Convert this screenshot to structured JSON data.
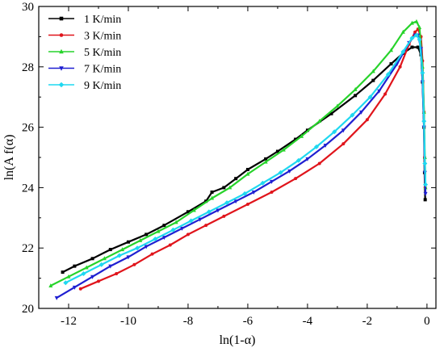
{
  "chart_data": {
    "type": "line",
    "xlabel": "ln(1-α)",
    "ylabel": "ln(A f(α)",
    "xlim": [
      -13,
      0.3
    ],
    "ylim": [
      20,
      30
    ],
    "xticks": [
      -12,
      -10,
      -8,
      -6,
      -4,
      -2,
      0
    ],
    "xtick_labels": [
      "-12",
      "-10",
      "-8",
      "-6",
      "-4",
      "-2",
      "0"
    ],
    "yticks": [
      20,
      22,
      24,
      26,
      28,
      30
    ],
    "ytick_labels": [
      "20",
      "22",
      "24",
      "26",
      "28",
      "30"
    ],
    "grid": false,
    "legend": "top-left",
    "series": [
      {
        "name": "1 K/min",
        "color": "#000000",
        "marker": "square",
        "points": [
          [
            -12.2,
            21.2
          ],
          [
            -11.8,
            21.4
          ],
          [
            -11.2,
            21.65
          ],
          [
            -10.6,
            21.95
          ],
          [
            -10.0,
            22.2
          ],
          [
            -9.4,
            22.45
          ],
          [
            -8.8,
            22.75
          ],
          [
            -8.0,
            23.2
          ],
          [
            -7.4,
            23.55
          ],
          [
            -7.2,
            23.85
          ],
          [
            -6.8,
            24.0
          ],
          [
            -6.4,
            24.3
          ],
          [
            -6.0,
            24.6
          ],
          [
            -5.4,
            24.95
          ],
          [
            -5.0,
            25.2
          ],
          [
            -4.4,
            25.6
          ],
          [
            -4.0,
            25.9
          ],
          [
            -3.2,
            26.45
          ],
          [
            -2.4,
            27.05
          ],
          [
            -1.8,
            27.55
          ],
          [
            -1.2,
            28.1
          ],
          [
            -0.8,
            28.45
          ],
          [
            -0.5,
            28.65
          ],
          [
            -0.3,
            28.65
          ],
          [
            -0.2,
            28.4
          ],
          [
            -0.15,
            27.5
          ],
          [
            -0.1,
            26.0
          ],
          [
            -0.08,
            24.5
          ],
          [
            -0.06,
            23.6
          ]
        ]
      },
      {
        "name": "3 K/min",
        "color": "#e0141b",
        "marker": "circle",
        "points": [
          [
            -11.6,
            20.65
          ],
          [
            -11.0,
            20.9
          ],
          [
            -10.4,
            21.15
          ],
          [
            -9.8,
            21.45
          ],
          [
            -9.2,
            21.8
          ],
          [
            -8.6,
            22.1
          ],
          [
            -8.0,
            22.45
          ],
          [
            -7.4,
            22.75
          ],
          [
            -6.8,
            23.05
          ],
          [
            -6.0,
            23.45
          ],
          [
            -5.2,
            23.85
          ],
          [
            -4.4,
            24.3
          ],
          [
            -3.6,
            24.8
          ],
          [
            -2.8,
            25.45
          ],
          [
            -2.0,
            26.25
          ],
          [
            -1.4,
            27.1
          ],
          [
            -0.9,
            28.0
          ],
          [
            -0.6,
            28.75
          ],
          [
            -0.4,
            29.15
          ],
          [
            -0.3,
            29.25
          ],
          [
            -0.2,
            29.0
          ],
          [
            -0.15,
            28.2
          ],
          [
            -0.1,
            26.5
          ],
          [
            -0.08,
            25.0
          ],
          [
            -0.06,
            24.0
          ]
        ]
      },
      {
        "name": "5 K/min",
        "color": "#27d32b",
        "marker": "triangle-up",
        "points": [
          [
            -12.6,
            20.75
          ],
          [
            -12.0,
            21.05
          ],
          [
            -11.4,
            21.35
          ],
          [
            -10.8,
            21.65
          ],
          [
            -10.2,
            21.95
          ],
          [
            -9.6,
            22.25
          ],
          [
            -9.0,
            22.55
          ],
          [
            -8.4,
            22.85
          ],
          [
            -7.8,
            23.25
          ],
          [
            -7.2,
            23.65
          ],
          [
            -6.6,
            24.0
          ],
          [
            -6.0,
            24.45
          ],
          [
            -5.4,
            24.85
          ],
          [
            -4.8,
            25.25
          ],
          [
            -4.2,
            25.7
          ],
          [
            -3.6,
            26.2
          ],
          [
            -3.0,
            26.7
          ],
          [
            -2.4,
            27.25
          ],
          [
            -1.8,
            27.85
          ],
          [
            -1.2,
            28.55
          ],
          [
            -0.8,
            29.15
          ],
          [
            -0.5,
            29.45
          ],
          [
            -0.35,
            29.5
          ],
          [
            -0.25,
            29.3
          ],
          [
            -0.15,
            28.0
          ],
          [
            -0.1,
            26.5
          ],
          [
            -0.07,
            25.0
          ],
          [
            -0.05,
            24.0
          ]
        ]
      },
      {
        "name": "7 K/min",
        "color": "#1f1fd1",
        "marker": "triangle-down",
        "points": [
          [
            -12.4,
            20.35
          ],
          [
            -11.8,
            20.7
          ],
          [
            -11.2,
            21.05
          ],
          [
            -10.6,
            21.4
          ],
          [
            -10.0,
            21.7
          ],
          [
            -9.4,
            22.05
          ],
          [
            -8.8,
            22.35
          ],
          [
            -8.2,
            22.65
          ],
          [
            -7.6,
            22.95
          ],
          [
            -7.0,
            23.25
          ],
          [
            -6.4,
            23.55
          ],
          [
            -5.8,
            23.85
          ],
          [
            -5.2,
            24.2
          ],
          [
            -4.6,
            24.55
          ],
          [
            -4.0,
            24.95
          ],
          [
            -3.4,
            25.4
          ],
          [
            -2.8,
            25.9
          ],
          [
            -2.2,
            26.5
          ],
          [
            -1.6,
            27.2
          ],
          [
            -1.0,
            28.1
          ],
          [
            -0.6,
            28.8
          ],
          [
            -0.4,
            29.05
          ],
          [
            -0.3,
            29.05
          ],
          [
            -0.2,
            28.6
          ],
          [
            -0.15,
            27.5
          ],
          [
            -0.1,
            26.0
          ],
          [
            -0.07,
            24.5
          ],
          [
            -0.05,
            23.8
          ]
        ]
      },
      {
        "name": "9 K/min",
        "color": "#1fd8f0",
        "marker": "diamond",
        "points": [
          [
            -12.1,
            20.85
          ],
          [
            -11.5,
            21.15
          ],
          [
            -10.9,
            21.45
          ],
          [
            -10.3,
            21.75
          ],
          [
            -9.7,
            22.0
          ],
          [
            -9.1,
            22.3
          ],
          [
            -8.5,
            22.6
          ],
          [
            -7.9,
            22.9
          ],
          [
            -7.3,
            23.2
          ],
          [
            -6.7,
            23.5
          ],
          [
            -6.1,
            23.8
          ],
          [
            -5.5,
            24.15
          ],
          [
            -4.9,
            24.5
          ],
          [
            -4.3,
            24.9
          ],
          [
            -3.7,
            25.35
          ],
          [
            -3.1,
            25.85
          ],
          [
            -2.5,
            26.4
          ],
          [
            -1.9,
            27.0
          ],
          [
            -1.3,
            27.75
          ],
          [
            -0.8,
            28.5
          ],
          [
            -0.5,
            28.95
          ],
          [
            -0.35,
            29.05
          ],
          [
            -0.25,
            28.9
          ],
          [
            -0.15,
            27.8
          ],
          [
            -0.1,
            26.2
          ],
          [
            -0.07,
            24.8
          ],
          [
            -0.05,
            24.1
          ]
        ]
      }
    ]
  }
}
